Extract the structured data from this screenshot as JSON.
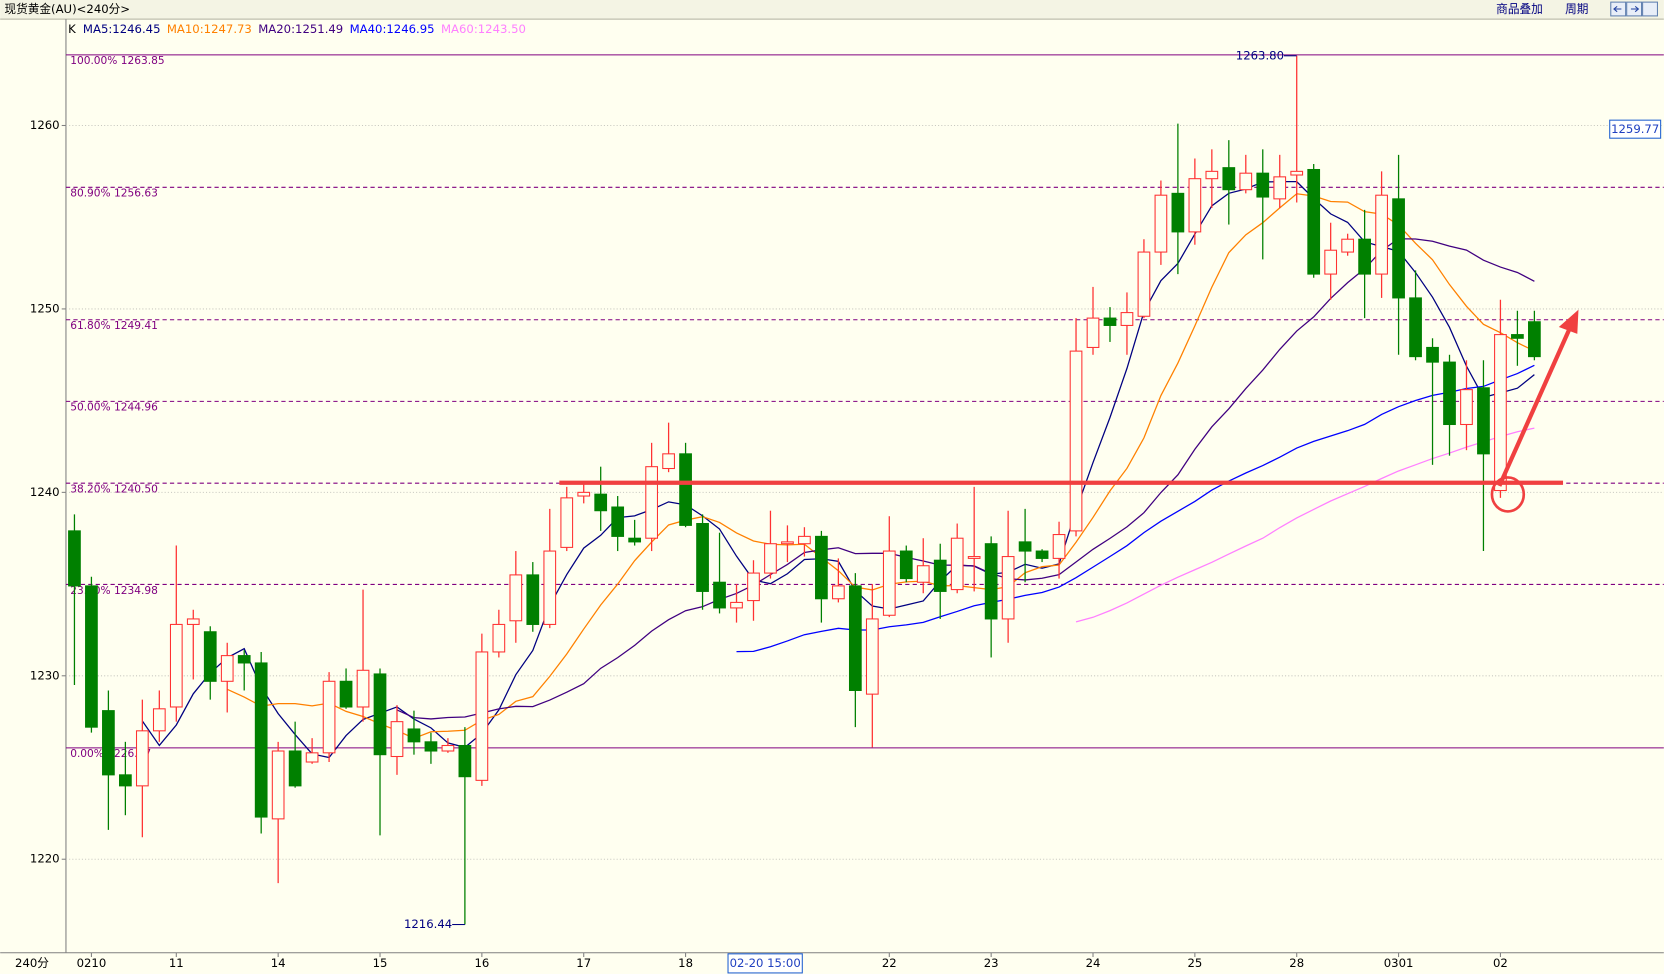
{
  "chart_data": {
    "type": "candlestick",
    "title": "现货黄金(AU)<240分>",
    "toolbar_buttons": [
      "商品叠加",
      "周期"
    ],
    "legend_prefix": "K",
    "x_axis_label": "240分",
    "up_color": "#ff3232",
    "down_color": "#008000",
    "grid": true,
    "ylim": [
      1214.9,
      1265.8
    ],
    "yticks": [
      1220,
      1230,
      1240,
      1250,
      1260
    ],
    "last_price": 1259.77,
    "moving_averages": [
      {
        "label": "MA5:1246.45",
        "color": "#000080"
      },
      {
        "label": "MA10:1247.73",
        "color": "#ff8000"
      },
      {
        "label": "MA20:1251.49",
        "color": "#400080"
      },
      {
        "label": "MA40:1246.95",
        "color": "#0000ff"
      },
      {
        "label": "MA60:1243.50",
        "color": "#ff80ff"
      }
    ],
    "fib_levels": [
      {
        "value": 1263.85,
        "label": "100.00% 1263.85",
        "dashed": false
      },
      {
        "value": 1256.63,
        "label": "80.90% 1256.63",
        "dashed": true
      },
      {
        "value": 1249.41,
        "label": "61.80% 1249.41",
        "dashed": true
      },
      {
        "value": 1244.96,
        "label": "50.00% 1244.96",
        "dashed": true
      },
      {
        "value": 1240.5,
        "label": "38.20% 1240.50",
        "dashed": true
      },
      {
        "value": 1234.98,
        "label": "23.60% 1234.98",
        "dashed": true
      },
      {
        "value": 1226.07,
        "label": "0.00% 1226.07",
        "dashed": false
      }
    ],
    "max_label": {
      "value": 1263.8,
      "label": "1263.80"
    },
    "min_label": {
      "value": 1216.44,
      "label": "1216.44"
    },
    "cursor_label": "02-20 15:00",
    "categories": [
      null,
      "0210",
      null,
      null,
      null,
      null,
      "11",
      null,
      null,
      null,
      null,
      null,
      "14",
      null,
      null,
      null,
      null,
      null,
      "15",
      null,
      null,
      null,
      null,
      null,
      "16",
      null,
      null,
      null,
      null,
      null,
      "17",
      null,
      null,
      null,
      null,
      null,
      "18",
      null,
      null,
      null,
      null,
      null,
      null,
      null,
      null,
      null,
      null,
      null,
      "22",
      null,
      null,
      null,
      null,
      null,
      "23",
      null,
      null,
      null,
      null,
      null,
      "24",
      null,
      null,
      null,
      null,
      null,
      "25",
      null,
      null,
      null,
      null,
      null,
      "28",
      null,
      null,
      null,
      null,
      null,
      "0301",
      null,
      null,
      null,
      null,
      null,
      "02",
      null,
      null
    ],
    "ohlc": [
      [
        1237.9,
        1238.8,
        1229.5,
        1234.9
      ],
      [
        1234.9,
        1235.4,
        1226.9,
        1227.2
      ],
      [
        1228.1,
        1229.2,
        1221.6,
        1224.6
      ],
      [
        1224.6,
        1226.4,
        1222.4,
        1224.0
      ],
      [
        1224.0,
        1228.7,
        1221.2,
        1227.0
      ],
      [
        1227.0,
        1229.2,
        1226.4,
        1228.2
      ],
      [
        1228.3,
        1237.1,
        1227.5,
        1232.8
      ],
      [
        1232.8,
        1233.6,
        1229.8,
        1233.1
      ],
      [
        1232.4,
        1232.7,
        1228.7,
        1229.7
      ],
      [
        1229.7,
        1231.8,
        1228.0,
        1231.1
      ],
      [
        1231.1,
        1231.4,
        1229.2,
        1230.7
      ],
      [
        1230.7,
        1231.3,
        1221.4,
        1222.3
      ],
      [
        1222.2,
        1226.4,
        1218.7,
        1225.9
      ],
      [
        1225.9,
        1227.5,
        1223.9,
        1224.0
      ],
      [
        1225.3,
        1226.6,
        1225.2,
        1225.8
      ],
      [
        1225.8,
        1230.2,
        1225.3,
        1229.7
      ],
      [
        1229.7,
        1230.4,
        1228.2,
        1228.3
      ],
      [
        1228.3,
        1234.7,
        1227.5,
        1230.3
      ],
      [
        1230.1,
        1230.4,
        1221.3,
        1225.7
      ],
      [
        1225.6,
        1228.4,
        1224.6,
        1227.5
      ],
      [
        1227.1,
        1228.1,
        1225.7,
        1226.4
      ],
      [
        1226.4,
        1226.9,
        1225.2,
        1225.9
      ],
      [
        1225.9,
        1226.6,
        1225.8,
        1226.2
      ],
      [
        1226.2,
        1227.2,
        1216.44,
        1224.5
      ],
      [
        1224.3,
        1232.3,
        1224.0,
        1231.3
      ],
      [
        1231.3,
        1233.6,
        1231.0,
        1232.8
      ],
      [
        1233.0,
        1236.8,
        1231.8,
        1235.5
      ],
      [
        1235.5,
        1236.2,
        1232.4,
        1232.8
      ],
      [
        1232.8,
        1239.1,
        1232.6,
        1236.8
      ],
      [
        1237.0,
        1240.3,
        1236.8,
        1239.7
      ],
      [
        1239.8,
        1240.5,
        1239.4,
        1240.0
      ],
      [
        1239.9,
        1241.4,
        1237.9,
        1239.0
      ],
      [
        1239.2,
        1239.8,
        1236.8,
        1237.6
      ],
      [
        1237.5,
        1238.5,
        1237.1,
        1237.3
      ],
      [
        1237.5,
        1242.7,
        1236.8,
        1241.4
      ],
      [
        1241.3,
        1243.8,
        1241.1,
        1242.1
      ],
      [
        1242.1,
        1242.7,
        1238.1,
        1238.2
      ],
      [
        1238.3,
        1238.8,
        1233.6,
        1234.6
      ],
      [
        1235.1,
        1237.8,
        1233.4,
        1233.7
      ],
      [
        1233.7,
        1235.0,
        1232.9,
        1234.0
      ],
      [
        1234.1,
        1236.3,
        1233.0,
        1235.6
      ],
      [
        1235.6,
        1239.0,
        1235.3,
        1237.2
      ],
      [
        1237.2,
        1238.2,
        1236.2,
        1237.3
      ],
      [
        1237.2,
        1238.1,
        1236.5,
        1237.6
      ],
      [
        1237.6,
        1237.9,
        1232.9,
        1234.2
      ],
      [
        1234.2,
        1236.4,
        1234.0,
        1234.9
      ],
      [
        1234.9,
        1235.6,
        1227.2,
        1229.2
      ],
      [
        1229.0,
        1235.0,
        1226.1,
        1233.1
      ],
      [
        1233.3,
        1238.7,
        1233.2,
        1236.8
      ],
      [
        1236.8,
        1237.1,
        1235.1,
        1235.3
      ],
      [
        1235.1,
        1237.5,
        1234.5,
        1236.0
      ],
      [
        1236.3,
        1237.2,
        1233.1,
        1234.6
      ],
      [
        1234.7,
        1238.3,
        1234.5,
        1237.5
      ],
      [
        1236.4,
        1240.3,
        1234.6,
        1236.5
      ],
      [
        1237.2,
        1237.6,
        1231.0,
        1233.1
      ],
      [
        1233.1,
        1239.0,
        1231.8,
        1236.5
      ],
      [
        1237.3,
        1239.1,
        1235.1,
        1236.8
      ],
      [
        1236.8,
        1236.9,
        1236.2,
        1236.4
      ],
      [
        1236.4,
        1238.4,
        1235.3,
        1237.7
      ],
      [
        1237.9,
        1249.5,
        1237.6,
        1247.7
      ],
      [
        1247.9,
        1251.2,
        1247.5,
        1249.5
      ],
      [
        1249.5,
        1250.1,
        1248.2,
        1249.1
      ],
      [
        1249.1,
        1250.9,
        1247.5,
        1249.8
      ],
      [
        1249.6,
        1253.8,
        1249.5,
        1253.1
      ],
      [
        1253.1,
        1257.0,
        1252.4,
        1256.2
      ],
      [
        1256.3,
        1260.1,
        1251.9,
        1254.2
      ],
      [
        1254.2,
        1258.2,
        1253.5,
        1257.1
      ],
      [
        1257.1,
        1258.7,
        1255.5,
        1257.5
      ],
      [
        1257.7,
        1259.2,
        1254.6,
        1256.5
      ],
      [
        1256.5,
        1258.4,
        1256.3,
        1257.4
      ],
      [
        1257.4,
        1258.7,
        1252.7,
        1256.1
      ],
      [
        1256.0,
        1258.4,
        1255.5,
        1257.2
      ],
      [
        1257.3,
        1263.8,
        1255.8,
        1257.5
      ],
      [
        1257.6,
        1257.9,
        1251.7,
        1251.9
      ],
      [
        1251.9,
        1254.7,
        1250.5,
        1253.2
      ],
      [
        1253.1,
        1254.1,
        1252.9,
        1253.8
      ],
      [
        1253.8,
        1255.4,
        1249.5,
        1251.9
      ],
      [
        1251.9,
        1257.5,
        1250.6,
        1256.2
      ],
      [
        1256.0,
        1258.4,
        1247.5,
        1250.6
      ],
      [
        1250.6,
        1252.1,
        1247.2,
        1247.4
      ],
      [
        1247.9,
        1248.4,
        1241.5,
        1247.1
      ],
      [
        1247.1,
        1247.5,
        1242.0,
        1243.7
      ],
      [
        1243.7,
        1247.2,
        1242.3,
        1245.6
      ],
      [
        1245.7,
        1247.2,
        1236.8,
        1242.1
      ],
      [
        1240.1,
        1250.5,
        1239.7,
        1248.6
      ],
      [
        1248.6,
        1249.9,
        1246.9,
        1248.4
      ],
      [
        1249.3,
        1249.9,
        1247.2,
        1247.4
      ]
    ]
  }
}
